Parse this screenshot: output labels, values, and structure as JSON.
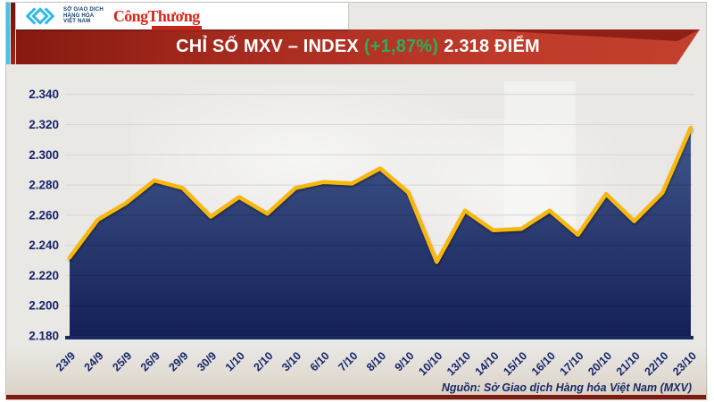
{
  "header": {
    "logo": {
      "mxv_icon": "chevron-diamond-logo",
      "org_lines": [
        "SỞ GIAO DỊCH",
        "HÀNG HÓA",
        "VIỆT NAM"
      ],
      "brand": "CôngThương"
    },
    "banner": {
      "title": "CHỈ SỐ MXV – INDEX",
      "change": "(+1,87%)",
      "value": "2.318 ĐIỂM"
    }
  },
  "chart_data": {
    "type": "area",
    "title": "CHỈ SỐ MXV – INDEX (+1,87%) 2.318 ĐIỂM",
    "xlabel": "",
    "ylabel": "",
    "x": [
      "23/9",
      "24/9",
      "25/9",
      "26/9",
      "29/9",
      "30/9",
      "1/10",
      "2/10",
      "3/10",
      "6/10",
      "7/10",
      "8/10",
      "9/10",
      "10/10",
      "13/10",
      "14/10",
      "15/10",
      "16/10",
      "17/10",
      "20/10",
      "21/10",
      "22/10",
      "23/10"
    ],
    "values": [
      2232,
      2257,
      2268,
      2283,
      2278,
      2259,
      2272,
      2261,
      2278,
      2282,
      2281,
      2291,
      2275,
      2229,
      2263,
      2250,
      2251,
      2263,
      2247,
      2274,
      2256,
      2275,
      2318
    ],
    "ylim": [
      2180,
      2340
    ],
    "ytick_step": 20,
    "ytick_labels": [
      "2.340",
      "2.320",
      "2.300",
      "2.280",
      "2.260",
      "2.240",
      "2.220",
      "2.200",
      "2.180"
    ],
    "grid": true,
    "legend": null,
    "line_color": "#F7B70A",
    "area_top_color": "#41588C",
    "area_bottom_color": "#141F57",
    "baseline_color": "#1B2A63",
    "label_color": "#16256B",
    "gridline_color": "#D6D5D2"
  },
  "footer": {
    "source": "Nguồn: Sở Giao dịch Hàng hóa Việt Nam (MXV)"
  },
  "colors": {
    "background": "#E9E8E5",
    "banner_red_dark": "#87190F",
    "banner_red_light": "#C2402E",
    "change_green": "#2BAD5C",
    "stripe_cyan": "#3EC6EA",
    "stripe_maroon": "#7E150E",
    "bottom_bar_red": "#7E1A10",
    "brand_red": "#D6281A"
  }
}
